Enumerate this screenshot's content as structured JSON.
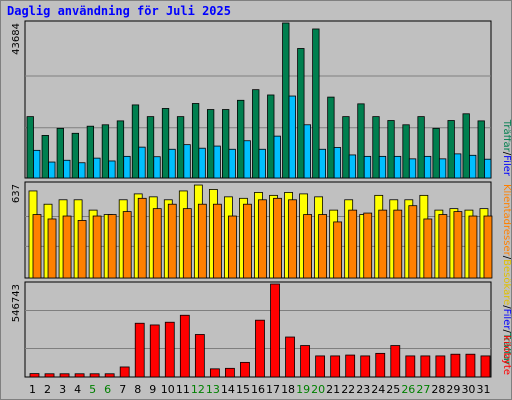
{
  "chart_data": {
    "title": "Daglig användning för Juli 2025",
    "type": "bar",
    "categories": [
      "1",
      "2",
      "3",
      "4",
      "5",
      "6",
      "7",
      "8",
      "9",
      "10",
      "11",
      "12",
      "13",
      "14",
      "15",
      "16",
      "17",
      "18",
      "19",
      "20",
      "21",
      "22",
      "23",
      "24",
      "25",
      "26",
      "27",
      "28",
      "29",
      "30",
      "31"
    ],
    "weekend_days": [
      "5",
      "6",
      "12",
      "13",
      "19",
      "20",
      "26",
      "27"
    ],
    "weekend_color": "#008000",
    "panels": [
      {
        "id": "hits",
        "ymax_label": "43684",
        "ymax": 43684,
        "series": [
          {
            "name": "Träffar",
            "color": "#007f4f",
            "values": [
              17300,
              12000,
              14000,
              12600,
              14600,
              15000,
              16100,
              20600,
              17300,
              19600,
              17300,
              21000,
              19300,
              19300,
              21900,
              24900,
              23400,
              43684,
              36500,
              42000,
              22800,
              17300,
              20900,
              17300,
              16200,
              15000,
              17300,
              14000,
              16200,
              18100,
              16100
            ]
          },
          {
            "name": "Filer",
            "color": "#00bfff",
            "values": [
              7800,
              4500,
              5000,
              4300,
              5600,
              4800,
              6100,
              8700,
              6000,
              8100,
              9400,
              8400,
              9000,
              8100,
              10500,
              8100,
              11800,
              23100,
              15000,
              8100,
              8600,
              6500,
              6100,
              6100,
              6100,
              5400,
              6100,
              5400,
              6800,
              6400,
              5300
            ]
          }
        ],
        "legend": [
          {
            "text": "Träffar",
            "color": "#007f4f"
          },
          {
            "text": "/",
            "color": "#000000"
          },
          {
            "text": "Filer",
            "color": "#0000ff"
          }
        ]
      },
      {
        "id": "visits",
        "ymax_label": "637",
        "ymax": 637,
        "series": [
          {
            "name": "Besökare",
            "color": "#ffff00",
            "values": [
              590,
              500,
              530,
              530,
              460,
              430,
              530,
              570,
              550,
              530,
              590,
              630,
              600,
              550,
              540,
              580,
              560,
              580,
              570,
              550,
              460,
              530,
              430,
              560,
              530,
              530,
              560,
              460,
              470,
              460,
              470
            ]
          },
          {
            "name": "Klientadresser",
            "color": "#ff8000",
            "values": [
              430,
              400,
              420,
              390,
              420,
              430,
              450,
              540,
              470,
              500,
              470,
              500,
              500,
              420,
              500,
              530,
              540,
              530,
              430,
              430,
              380,
              460,
              440,
              460,
              460,
              490,
              400,
              430,
              450,
              420,
              420
            ]
          }
        ],
        "legend": [
          {
            "text": "Klientadresser",
            "color": "#ff8000"
          },
          {
            "text": "/",
            "color": "#000000"
          },
          {
            "text": "Besökare",
            "color": "#e0c000"
          },
          {
            "text": "/",
            "color": "#000000"
          },
          {
            "text": "Filer",
            "color": "#0000ff"
          },
          {
            "text": "/",
            "color": "#000000"
          },
          {
            "text": "Träffar",
            "color": "#007f4f"
          }
        ]
      },
      {
        "id": "kbytes",
        "ymax_label": "546743",
        "ymax": 546743,
        "series": [
          {
            "name": "kilobyte",
            "color": "#ff0000",
            "values": [
              20000,
              19000,
              19000,
              19000,
              19000,
              19000,
              59000,
              316000,
              306000,
              322000,
              363000,
              250000,
              48000,
              51000,
              86000,
              334000,
              546743,
              235000,
              185000,
              124000,
              124000,
              129000,
              124000,
              139000,
              185000,
              124000,
              124000,
              124000,
              134000,
              134000,
              124000
            ]
          }
        ],
        "legend": [
          {
            "text": "kilobyte",
            "color": "#ff0000"
          }
        ]
      }
    ]
  }
}
